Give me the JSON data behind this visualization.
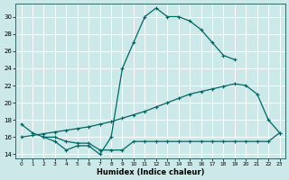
{
  "xlabel": "Humidex (Indice chaleur)",
  "bg_color": "#cce8e8",
  "grid_color": "#ffffff",
  "line_color": "#006666",
  "xlim": [
    -0.5,
    23.5
  ],
  "ylim": [
    13.5,
    31.5
  ],
  "xticks": [
    0,
    1,
    2,
    3,
    4,
    5,
    6,
    7,
    8,
    9,
    10,
    11,
    12,
    13,
    14,
    15,
    16,
    17,
    18,
    19,
    20,
    21,
    22,
    23
  ],
  "yticks": [
    14,
    16,
    18,
    20,
    22,
    24,
    26,
    28,
    30
  ],
  "line1_x": [
    0,
    1,
    2,
    3,
    4,
    5,
    6,
    7,
    8,
    9,
    10,
    11,
    12,
    13,
    14,
    15,
    16,
    17,
    18,
    19
  ],
  "line1_y": [
    17.5,
    16.5,
    16.0,
    15.5,
    14.5,
    15.0,
    15.0,
    14.0,
    16.0,
    24.0,
    27.0,
    30.0,
    31.0,
    30.0,
    30.0,
    29.5,
    28.5,
    27.0,
    25.5,
    25.0
  ],
  "line2_x": [
    0,
    1,
    2,
    3,
    4,
    5,
    6,
    7,
    8,
    9,
    10,
    11,
    12,
    13,
    14,
    15,
    16,
    17,
    18,
    19,
    20,
    21,
    22,
    23
  ],
  "line2_y": [
    16.0,
    16.2,
    16.4,
    16.6,
    16.8,
    17.0,
    17.2,
    17.5,
    17.8,
    18.2,
    18.6,
    19.0,
    19.5,
    20.0,
    20.5,
    21.0,
    21.3,
    21.6,
    21.9,
    22.2,
    22.0,
    21.0,
    18.0,
    16.5
  ],
  "line3_x": [
    2,
    3,
    4,
    5,
    6,
    7,
    8,
    9,
    10,
    11,
    12,
    13,
    14,
    15,
    16,
    17,
    18,
    19,
    20,
    21,
    22,
    23
  ],
  "line3_y": [
    16.0,
    16.0,
    15.5,
    15.3,
    15.3,
    14.5,
    14.5,
    14.5,
    15.5,
    15.5,
    15.5,
    15.5,
    15.5,
    15.5,
    15.5,
    15.5,
    15.5,
    15.5,
    15.5,
    15.5,
    15.5,
    16.5
  ]
}
